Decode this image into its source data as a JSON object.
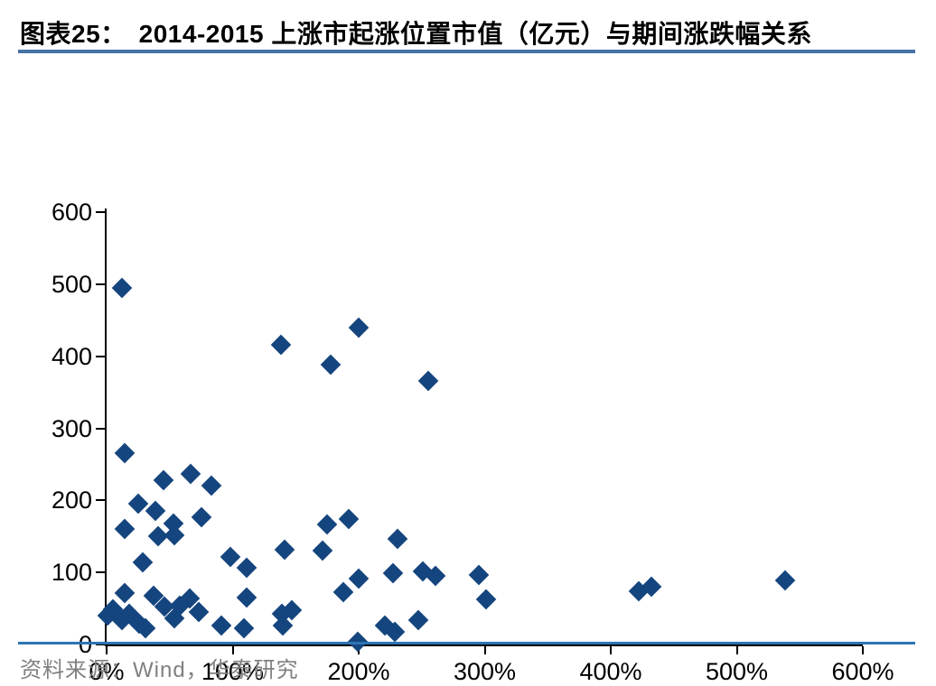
{
  "header": {
    "label": "图表25：",
    "title": "2014-2015 上涨市起涨位置市值（亿元）与期间涨跌幅关系"
  },
  "footer": {
    "source": "资料来源：Wind，华泰研究"
  },
  "colors": {
    "marker": "#15457E",
    "title_rule": "#4672A8",
    "footer_rule": "#2E74B5",
    "axis": "#000000",
    "footer_text": "#808080"
  },
  "chart_data": {
    "type": "scatter",
    "title": "图表25： 2014-2015 上涨市起涨位置市值（亿元）与期间涨跌幅关系",
    "xlabel": "",
    "ylabel": "",
    "xlim": [
      0,
      600
    ],
    "ylim": [
      0,
      600
    ],
    "x_ticks": [
      "0%",
      "100%",
      "200%",
      "300%",
      "400%",
      "500%",
      "600%"
    ],
    "y_ticks": [
      "0",
      "100",
      "200",
      "300",
      "400",
      "500",
      "600"
    ],
    "grid": false,
    "legend": false,
    "marker": "diamond",
    "marker_color": "#15457E",
    "points": [
      [
        12,
        495
      ],
      [
        138,
        416
      ],
      [
        200,
        440
      ],
      [
        178,
        388
      ],
      [
        255,
        366
      ],
      [
        14,
        266
      ],
      [
        45,
        228
      ],
      [
        67,
        237
      ],
      [
        83,
        220
      ],
      [
        25,
        195
      ],
      [
        39,
        185
      ],
      [
        14,
        160
      ],
      [
        41,
        150
      ],
      [
        53,
        168
      ],
      [
        54,
        151
      ],
      [
        75,
        177
      ],
      [
        29,
        114
      ],
      [
        175,
        166
      ],
      [
        192,
        174
      ],
      [
        141,
        132
      ],
      [
        171,
        130
      ],
      [
        231,
        146
      ],
      [
        98,
        122
      ],
      [
        111,
        107
      ],
      [
        111,
        65
      ],
      [
        227,
        99
      ],
      [
        251,
        101
      ],
      [
        261,
        95
      ],
      [
        295,
        96
      ],
      [
        301,
        63
      ],
      [
        200,
        92
      ],
      [
        188,
        73
      ],
      [
        139,
        43
      ],
      [
        147,
        47
      ],
      [
        140,
        26
      ],
      [
        199,
        4
      ],
      [
        221,
        26
      ],
      [
        229,
        17
      ],
      [
        247,
        34
      ],
      [
        91,
        26
      ],
      [
        109,
        23
      ],
      [
        1,
        40
      ],
      [
        5,
        49
      ],
      [
        12,
        34
      ],
      [
        14,
        72
      ],
      [
        18,
        42
      ],
      [
        26,
        29
      ],
      [
        31,
        23
      ],
      [
        37,
        68
      ],
      [
        46,
        52
      ],
      [
        58,
        54
      ],
      [
        54,
        36
      ],
      [
        66,
        64
      ],
      [
        73,
        45
      ],
      [
        422,
        74
      ],
      [
        432,
        80
      ],
      [
        538,
        89
      ]
    ]
  }
}
